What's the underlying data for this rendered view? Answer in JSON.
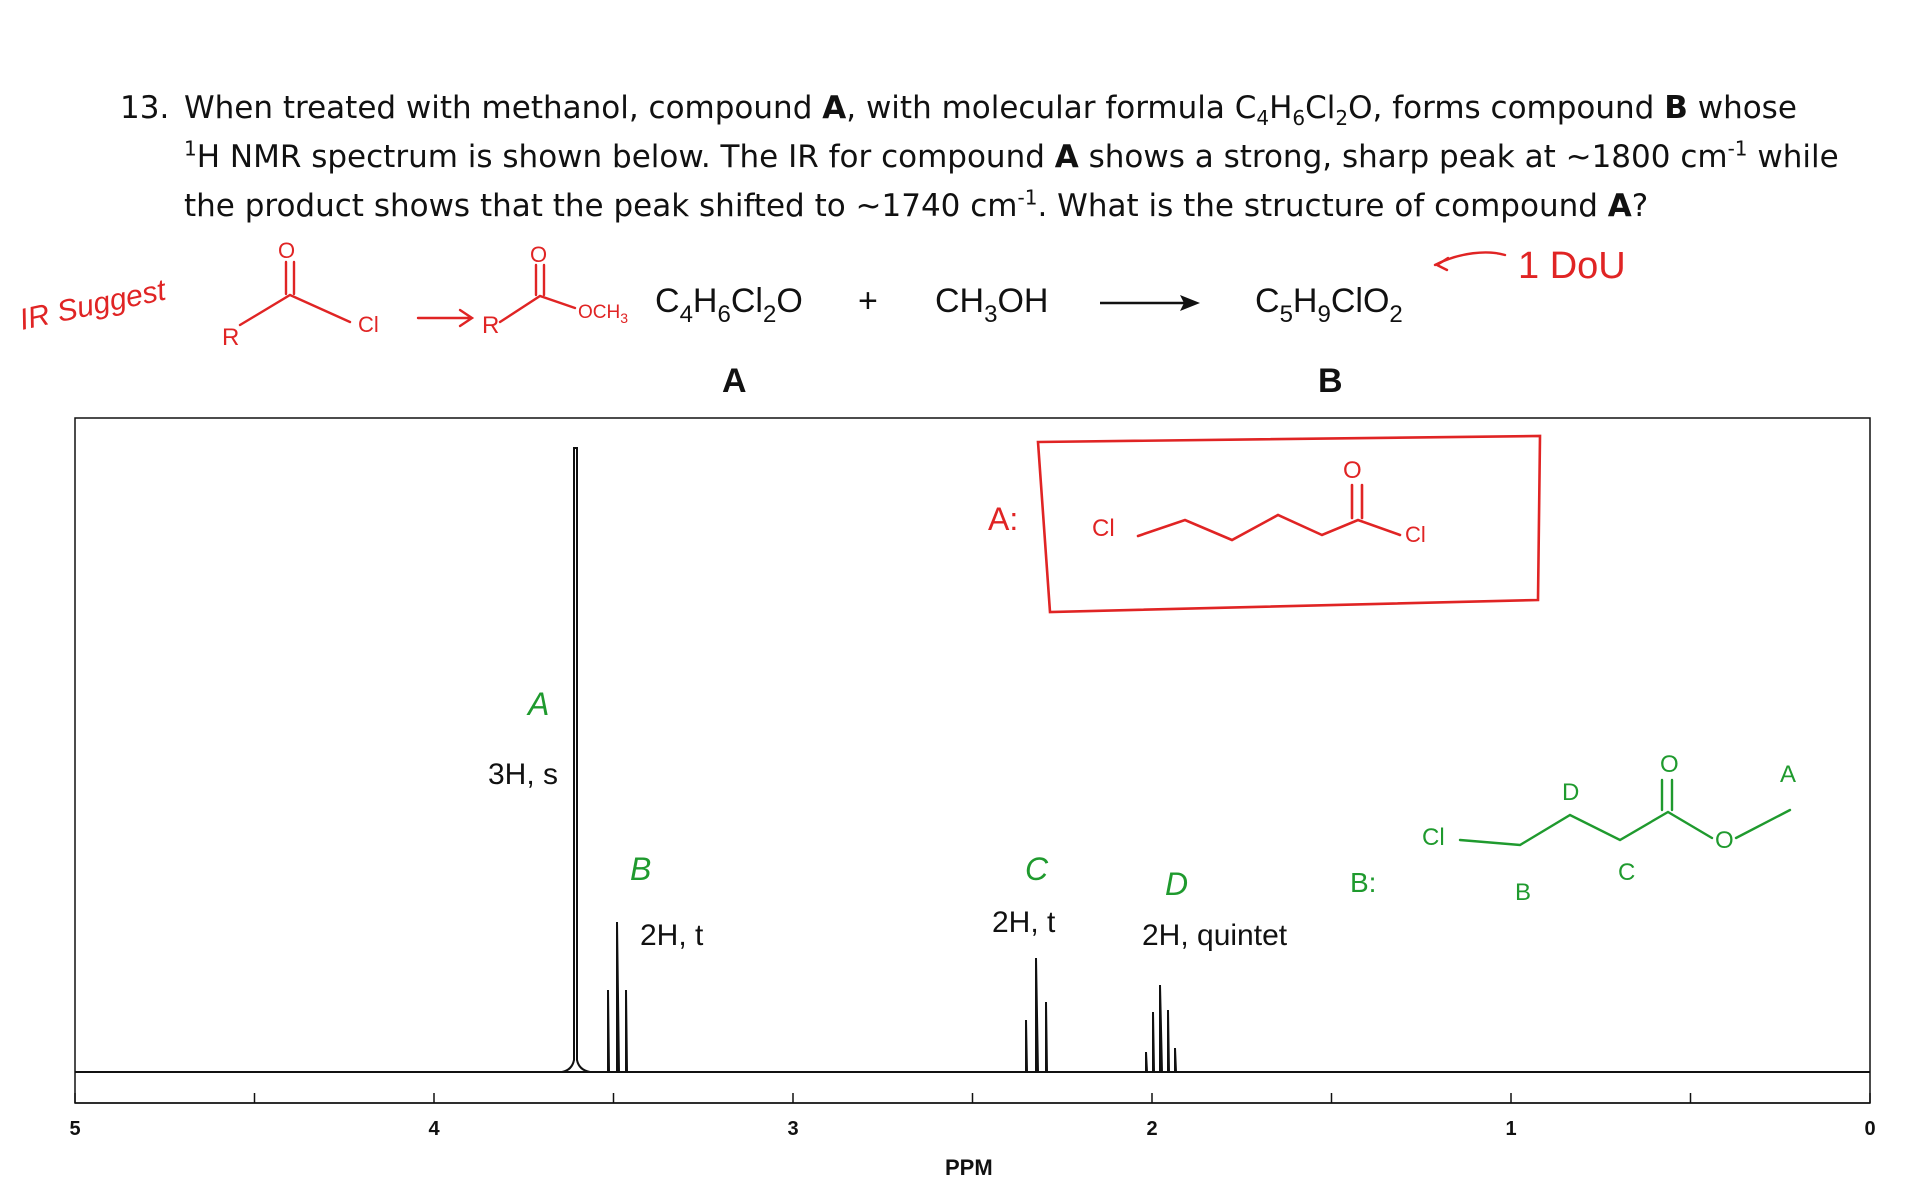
{
  "question": {
    "number": "13.",
    "t1": "When treated with methanol, compound ",
    "a1": "A",
    "t2": ", with molecular formula C",
    "s1": "4",
    "t3": "H",
    "s2": "6",
    "t4": "Cl",
    "s3": "2",
    "t5": "O, forms compound ",
    "b1": "B",
    "t6": " whose ",
    "sup1": "1",
    "t7": "H NMR spectrum is shown below. The IR for compound ",
    "a2": "A",
    "t8": " shows a strong, sharp peak at ~1800 cm",
    "sup2": "-1",
    "t9": " while the product shows that the peak shifted to ~1740 cm",
    "sup3": "-1",
    "t10": ". What is the structure of compound ",
    "a3": "A",
    "t11": "?"
  },
  "reaction": {
    "reactant_c": "C",
    "reactant_c_sub": "4",
    "reactant_h": "H",
    "reactant_h_sub": "6",
    "reactant_cl": "Cl",
    "reactant_cl_sub": "2",
    "reactant_o": "O",
    "plus": "+",
    "reagent_ch": "CH",
    "reagent_sub": "3",
    "reagent_oh": "OH",
    "product_c": "C",
    "product_c_sub": "5",
    "product_h": "H",
    "product_h_sub": "9",
    "product_rest": "ClO",
    "product_o_sub": "2",
    "label_a": "A",
    "label_b": "B"
  },
  "handwritten": {
    "ir_suggest": "IR Suggest",
    "r1": "R",
    "cl1": "Cl",
    "o1": "O",
    "r2": "R",
    "och3": "OCH",
    "och3_sub": "3",
    "o2": "O",
    "dou": "1 DoU",
    "answer_label": "A:",
    "cl_left": "Cl",
    "cl_right": "Cl",
    "o_answer": "O",
    "b_label": "B:",
    "cl_b": "Cl",
    "o_b_top": "O",
    "o_b_ester": "O",
    "letter_b": "B",
    "letter_c": "C",
    "letter_d": "D",
    "letter_a": "A",
    "peak_a": "A",
    "peak_b": "B",
    "peak_c": "C",
    "peak_d": "D"
  },
  "spectrum": {
    "x_label": "PPM",
    "x_range": [
      5,
      0
    ],
    "ticks": [
      "5",
      "4",
      "3",
      "2",
      "1",
      "0"
    ],
    "peaks": [
      {
        "ppm": 3.67,
        "label": "3H, s"
      },
      {
        "ppm": 3.55,
        "label": "2H, t"
      },
      {
        "ppm": 2.45,
        "label": "2H, t"
      },
      {
        "ppm": 2.05,
        "label": "2H, quintet"
      }
    ]
  },
  "colors": {
    "ink": "#111111",
    "red": "#e02424",
    "green": "#1f9a2e"
  }
}
